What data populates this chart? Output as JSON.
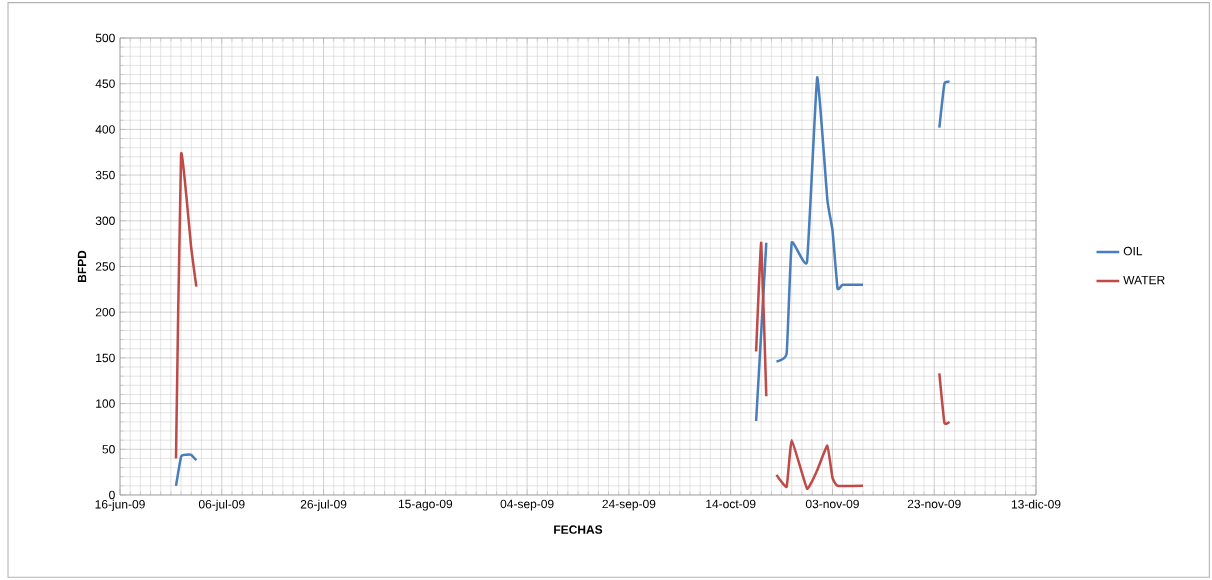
{
  "chart_data": {
    "type": "line",
    "xlabel": "FECHAS",
    "ylabel": "BFPD",
    "xlim": [
      "2009-06-16",
      "2009-12-13"
    ],
    "xticks": [
      {
        "value": "2009-06-16",
        "label": "16-jun-09"
      },
      {
        "value": "2009-07-06",
        "label": "06-jul-09"
      },
      {
        "value": "2009-07-26",
        "label": "26-jul-09"
      },
      {
        "value": "2009-08-15",
        "label": "15-ago-09"
      },
      {
        "value": "2009-09-04",
        "label": "04-sep-09"
      },
      {
        "value": "2009-09-24",
        "label": "24-sep-09"
      },
      {
        "value": "2009-10-14",
        "label": "14-oct-09"
      },
      {
        "value": "2009-11-03",
        "label": "03-nov-09"
      },
      {
        "value": "2009-11-23",
        "label": "23-nov-09"
      },
      {
        "value": "2009-12-13",
        "label": "13-dic-09"
      }
    ],
    "ylim": [
      0,
      500
    ],
    "yticks": [
      0,
      50,
      100,
      150,
      200,
      250,
      300,
      350,
      400,
      450,
      500
    ],
    "grid": true,
    "legend": "right",
    "series": [
      {
        "name": "OIL",
        "color": "#4a7ebb",
        "x": [
          "2009-06-27",
          "2009-06-28",
          "2009-06-29",
          "2009-06-30",
          "2009-07-01",
          "2009-07-02",
          "2009-10-19",
          "2009-10-20",
          "2009-10-21",
          "2009-10-22",
          "2009-10-23",
          "2009-10-25",
          "2009-10-26",
          "2009-10-29",
          "2009-10-31",
          "2009-11-02",
          "2009-11-03",
          "2009-11-04",
          "2009-11-05",
          "2009-11-09",
          "2009-11-10",
          "2009-11-24",
          "2009-11-25",
          "2009-11-26"
        ],
        "values": [
          10,
          42,
          44,
          44,
          38,
          null,
          81,
          178,
          276,
          null,
          146,
          155,
          276,
          255,
          457,
          323,
          290,
          226,
          230,
          230,
          null,
          402,
          450,
          452
        ]
      },
      {
        "name": "WATER",
        "color": "#be4b48",
        "x": [
          "2009-06-27",
          "2009-06-28",
          "2009-06-30",
          "2009-07-01",
          "2009-07-02",
          "2009-10-19",
          "2009-10-20",
          "2009-10-21",
          "2009-10-22",
          "2009-10-23",
          "2009-10-25",
          "2009-10-26",
          "2009-10-29",
          "2009-10-31",
          "2009-11-02",
          "2009-11-03",
          "2009-11-04",
          "2009-11-09",
          "2009-11-10",
          "2009-11-24",
          "2009-11-25",
          "2009-11-26"
        ],
        "values": [
          40,
          373,
          270,
          228,
          null,
          157,
          276,
          108,
          null,
          22,
          9,
          60,
          7,
          27,
          54,
          19,
          10,
          10,
          null,
          133,
          79,
          80
        ]
      }
    ]
  }
}
